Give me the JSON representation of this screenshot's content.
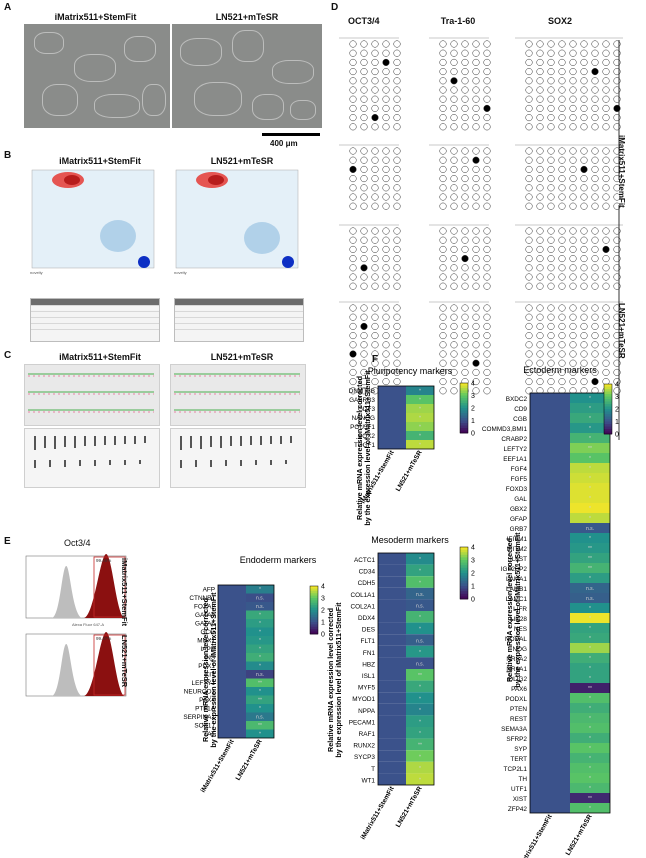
{
  "panels": {
    "a": {
      "letter": "A",
      "titles": [
        "iMatrix511+StemFit",
        "LN521+mTeSR"
      ],
      "scale": "400 μm"
    },
    "b": {
      "letter": "B",
      "titles": [
        "iMatrix511+StemFit",
        "LN521+mTeSR"
      ]
    },
    "c": {
      "letter": "C",
      "titles": [
        "iMatrix511+StemFit",
        "LN521+mTeSR"
      ]
    },
    "d": {
      "letter": "D",
      "columns": [
        "OCT3/4",
        "Tra-1-60",
        "SOX2"
      ],
      "side_labels": [
        "iMatrix511+StemFit",
        "LN521+mTeSR"
      ]
    },
    "e": {
      "letter": "E",
      "title": "Oct3/4",
      "side_labels": [
        "iMatrix511+StemFit",
        "LN521+mTeSR"
      ],
      "gate_values": [
        "99.46%",
        "99.47%"
      ]
    },
    "f": {
      "letter": "F"
    }
  },
  "chart_data": [
    {
      "type": "heatmap",
      "title": "Endoderm markers",
      "ylabel": "Relative mRNA expression level corrected by the expression level of iMatrix511+StemFit",
      "columns": [
        "iMatrix511+StemFit",
        "LN521+mTeSR"
      ],
      "rows": [
        "AFP",
        "CTNNB1",
        "FOXA2",
        "GATA4",
        "GATA6",
        "GCG",
        "MNX1",
        "IAPP",
        "INS",
        "PDX1",
        "KIT",
        "LEFTY1",
        "NEUROD1",
        "PAX4",
        "PTF1A",
        "SERPINA1",
        "SOX17",
        "TAT"
      ],
      "values": [
        [
          1,
          1.7
        ],
        [
          1,
          0.95
        ],
        [
          1,
          1.1
        ],
        [
          1,
          2.4
        ],
        [
          1,
          2.2
        ],
        [
          1,
          2.0
        ],
        [
          1,
          2.1
        ],
        [
          1,
          2.3
        ],
        [
          1,
          2.5
        ],
        [
          1,
          1.9
        ],
        [
          1,
          0.8
        ],
        [
          1,
          2.8
        ],
        [
          1,
          2.0
        ],
        [
          1,
          2.3
        ],
        [
          1,
          2.0
        ],
        [
          1,
          1.6
        ],
        [
          1,
          2.7
        ],
        [
          1,
          2.0
        ]
      ],
      "sig": [
        "*",
        "n.s.",
        "n.s.",
        "*",
        "*",
        "*",
        "*",
        "*",
        "*",
        "*",
        "n.s.",
        "**",
        "*",
        "**",
        "*",
        "n.s.",
        "**",
        "*"
      ],
      "colorbar": {
        "min": 0,
        "max": 4,
        "ticks": [
          "4",
          "3",
          "2",
          "1",
          "0"
        ]
      }
    },
    {
      "type": "heatmap",
      "title": "Pluripotency  markers",
      "ylabel": "Relative mRNA expression level corrected by the expression level of iMatrix511+StemFit",
      "columns": [
        "iMatrix511+StemFit",
        "LN521+mTeSR"
      ],
      "rows": [
        "DNMT3B",
        "GABRB3",
        "GDF3",
        "NANOG",
        "POU5F1",
        "SOX2",
        "TDGF1"
      ],
      "values": [
        [
          1,
          1.8
        ],
        [
          1,
          2.9
        ],
        [
          1,
          3.4
        ],
        [
          1,
          3.5
        ],
        [
          1,
          3.3
        ],
        [
          1,
          2.6
        ],
        [
          1,
          3.6
        ]
      ],
      "sig": [
        "*",
        "*",
        "*",
        "*",
        "*",
        "*",
        "*"
      ],
      "colorbar": {
        "min": 0,
        "max": 4,
        "ticks": [
          "4",
          "3",
          "2",
          "1",
          "0"
        ]
      }
    },
    {
      "type": "heatmap",
      "title": "Mesoderm markers",
      "ylabel": "Relative mRNA expression level corrected by the expression level of iMatrix511+StemFit",
      "columns": [
        "iMatrix511+StemFit",
        "LN521+mTeSR"
      ],
      "rows": [
        "ACTC1",
        "CD34",
        "CDH5",
        "COL1A1",
        "COL2A1",
        "DDX4",
        "DES",
        "FLT1",
        "FN1",
        "HBZ",
        "ISL1",
        "MYF5",
        "MYOD1",
        "NPPA",
        "PECAM1",
        "RAF1",
        "RUNX2",
        "SYCP3",
        "T",
        "WT1"
      ],
      "values": [
        [
          1,
          1.9
        ],
        [
          1,
          2.3
        ],
        [
          1,
          2.8
        ],
        [
          1,
          1.3
        ],
        [
          1,
          1.1
        ],
        [
          1,
          2.6
        ],
        [
          1,
          2.0
        ],
        [
          1,
          1.2
        ],
        [
          1,
          2.1
        ],
        [
          1,
          1.0
        ],
        [
          1,
          2.9
        ],
        [
          1,
          2.4
        ],
        [
          1,
          2.0
        ],
        [
          1,
          1.8
        ],
        [
          1,
          2.2
        ],
        [
          1,
          2.3
        ],
        [
          1,
          2.6
        ],
        [
          1,
          3.1
        ],
        [
          1,
          3.5
        ],
        [
          1,
          3.6
        ]
      ],
      "sig": [
        "*",
        "*",
        "*",
        "n.s.",
        "n.s.",
        "*",
        "*",
        "n.s.",
        "*",
        "n.s.",
        "**",
        "*",
        "*",
        "*",
        "*",
        "*",
        "**",
        "*",
        "*",
        "*"
      ],
      "colorbar": {
        "min": 0,
        "max": 4,
        "ticks": [
          "4",
          "3",
          "2",
          "1",
          "0"
        ]
      }
    },
    {
      "type": "heatmap",
      "title": "Ectoderm markers",
      "ylabel": "Relative mRNA expression level corrected by the expression level of iMatrix511+StemFit",
      "columns": [
        "iMatrix511+StemFit",
        "LN521+mTeSR"
      ],
      "rows": [
        "BXDC2",
        "CD9",
        "CGB",
        "COMMD3,BMI1",
        "CRABP2",
        "LEFTY2",
        "EEF1A1",
        "FGF4",
        "FGF5",
        "FOXD3",
        "GAL",
        "GBX2",
        "GFAP",
        "GRB7",
        "IFITM1",
        "IFITM2",
        "IL6ST",
        "IGF2BP2",
        "LAMA1",
        "LAMB1",
        "LAMC1",
        "LIFR",
        "LIN28",
        "NES",
        "NODAL",
        "NOG",
        "NR5A2",
        "NR6A1",
        "OLIG2",
        "PAX6",
        "PODXL",
        "PTEN",
        "REST",
        "SEMA3A",
        "SFRP2",
        "SYP",
        "TERT",
        "TCP2L1",
        "TH",
        "UTF1",
        "XIST",
        "ZFP42"
      ],
      "values": [
        [
          1,
          2.0
        ],
        [
          1,
          2.2
        ],
        [
          1,
          2.4
        ],
        [
          1,
          2.1
        ],
        [
          1,
          2.6
        ],
        [
          1,
          3.2
        ],
        [
          1,
          2.9
        ],
        [
          1,
          3.6
        ],
        [
          1,
          3.7
        ],
        [
          1,
          3.8
        ],
        [
          1,
          3.8
        ],
        [
          1,
          3.9
        ],
        [
          1,
          3.6
        ],
        [
          1,
          1.1
        ],
        [
          1,
          2.0
        ],
        [
          1,
          2.1
        ],
        [
          1,
          2.3
        ],
        [
          1,
          2.6
        ],
        [
          1,
          2.2
        ],
        [
          1,
          1.3
        ],
        [
          1,
          1.2
        ],
        [
          1,
          2.0
        ],
        [
          1,
          3.9
        ],
        [
          1,
          2.3
        ],
        [
          1,
          2.4
        ],
        [
          1,
          3.4
        ],
        [
          1,
          2.5
        ],
        [
          1,
          2.3
        ],
        [
          1,
          2.3
        ],
        [
          1,
          0.4
        ],
        [
          1,
          2.8
        ],
        [
          1,
          2.5
        ],
        [
          1,
          2.7
        ],
        [
          1,
          2.8
        ],
        [
          1,
          2.5
        ],
        [
          1,
          2.9
        ],
        [
          1,
          2.6
        ],
        [
          1,
          2.8
        ],
        [
          1,
          2.9
        ],
        [
          1,
          2.7
        ],
        [
          1,
          0.5
        ],
        [
          1,
          2.8
        ]
      ],
      "sig": [
        "*",
        "*",
        "*",
        "*",
        "*",
        "**",
        "*",
        "*",
        "*",
        "*",
        "*",
        "*",
        "*",
        "n.s.",
        "*",
        "**",
        "**",
        "**",
        "*",
        "n.s.",
        "n.s.",
        "*",
        "*",
        "*",
        "*",
        "*",
        "*",
        "*",
        "*",
        "**",
        "*",
        "*",
        "*",
        "*",
        "*",
        "*",
        "*",
        "*",
        "*",
        "*",
        "**",
        "*"
      ],
      "colorbar": {
        "min": 0,
        "max": 4,
        "ticks": [
          "4",
          "3",
          "2",
          "1",
          "0"
        ]
      }
    }
  ]
}
